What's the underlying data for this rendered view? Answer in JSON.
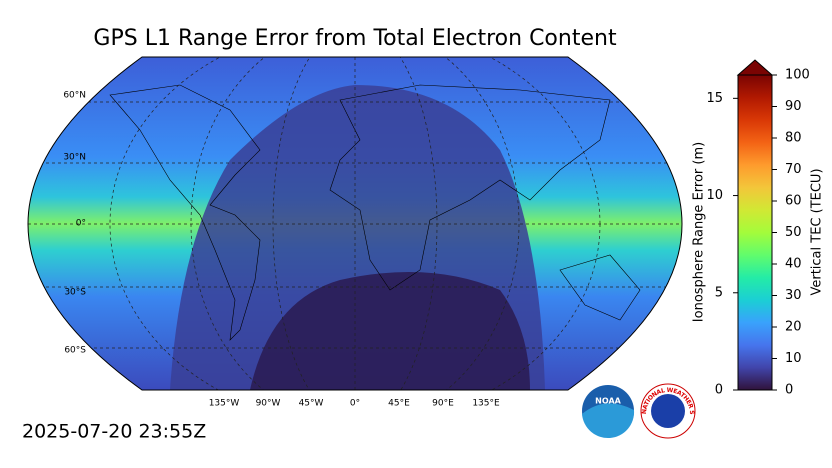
{
  "title": "GPS L1 Range Error from Total Electron Content",
  "timestamp": "2025-07-20 23:55Z",
  "map": {
    "lat_labels": [
      "60°N",
      "30°N",
      "0°",
      "30°S",
      "60°S"
    ],
    "lon_labels": [
      "135°W",
      "90°W",
      "45°W",
      "0°",
      "45°E",
      "90°E",
      "135°E"
    ]
  },
  "colorbar": {
    "left_label": "Ionosphere Range Error (m)",
    "left_lim": [
      0,
      16.2
    ],
    "left_ticks": [
      0,
      5,
      10,
      15
    ],
    "right_label": "Vertical TEC (TECU)",
    "right_lim": [
      0,
      100
    ],
    "right_ticks": [
      0,
      10,
      20,
      30,
      40,
      50,
      60,
      70,
      80,
      90,
      100
    ],
    "colors": [
      "#30123b",
      "#4145ab",
      "#4675ed",
      "#39a2fc",
      "#1bcfd4",
      "#24eca6",
      "#61fc6c",
      "#a4fc3b",
      "#d1e834",
      "#f3c63a",
      "#fe9b2d",
      "#f36315",
      "#d93806",
      "#b11901",
      "#7a0403"
    ],
    "extend_color": "#7a0403"
  },
  "logos": {
    "noaa": "NOAA",
    "nws": "NATIONAL WEATHER SERVICE"
  }
}
